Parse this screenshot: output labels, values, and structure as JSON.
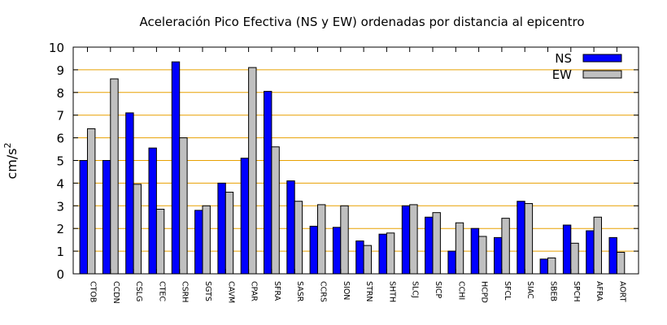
{
  "chart_data": {
    "type": "bar",
    "title": "Aceleración Pico Efectiva (NS y EW) ordenadas por distancia al epicentro",
    "ylabel": "cm/s",
    "ylabel_sup": "2",
    "xlabel": "",
    "ylim": [
      0,
      10
    ],
    "yticks": [
      0,
      1,
      2,
      3,
      4,
      5,
      6,
      7,
      8,
      9,
      10
    ],
    "grid": "horizontal",
    "legend_position": "top-right",
    "categories": [
      "CTOB",
      "CCDN",
      "CSLG",
      "CTEC",
      "CSRH",
      "SGTS",
      "CAVM",
      "CPAR",
      "SFRA",
      "SASR",
      "CCRS",
      "SION",
      "STRN",
      "SHTH",
      "SLCJ",
      "SICP",
      "CCHI",
      "HCPD",
      "SFCL",
      "SIAC",
      "SBEB",
      "SPCH",
      "AFRA",
      "AORT"
    ],
    "series": [
      {
        "name": "NS",
        "color": "#0000ff",
        "values": [
          5.0,
          5.0,
          7.1,
          5.55,
          9.35,
          2.8,
          4.0,
          5.1,
          8.05,
          4.1,
          2.1,
          2.05,
          1.45,
          1.75,
          3.0,
          2.5,
          1.0,
          2.0,
          1.6,
          3.2,
          0.65,
          2.15,
          1.9,
          1.6
        ]
      },
      {
        "name": "EW",
        "color": "#c0c0c0",
        "values": [
          6.4,
          8.6,
          3.95,
          2.85,
          6.0,
          3.0,
          3.6,
          9.1,
          5.6,
          3.2,
          3.05,
          3.0,
          1.25,
          1.8,
          3.05,
          2.7,
          2.25,
          1.65,
          2.45,
          3.1,
          0.7,
          1.35,
          2.5,
          0.95
        ]
      }
    ],
    "colors": {
      "grid": "#e8a000",
      "axis": "#000000"
    }
  }
}
